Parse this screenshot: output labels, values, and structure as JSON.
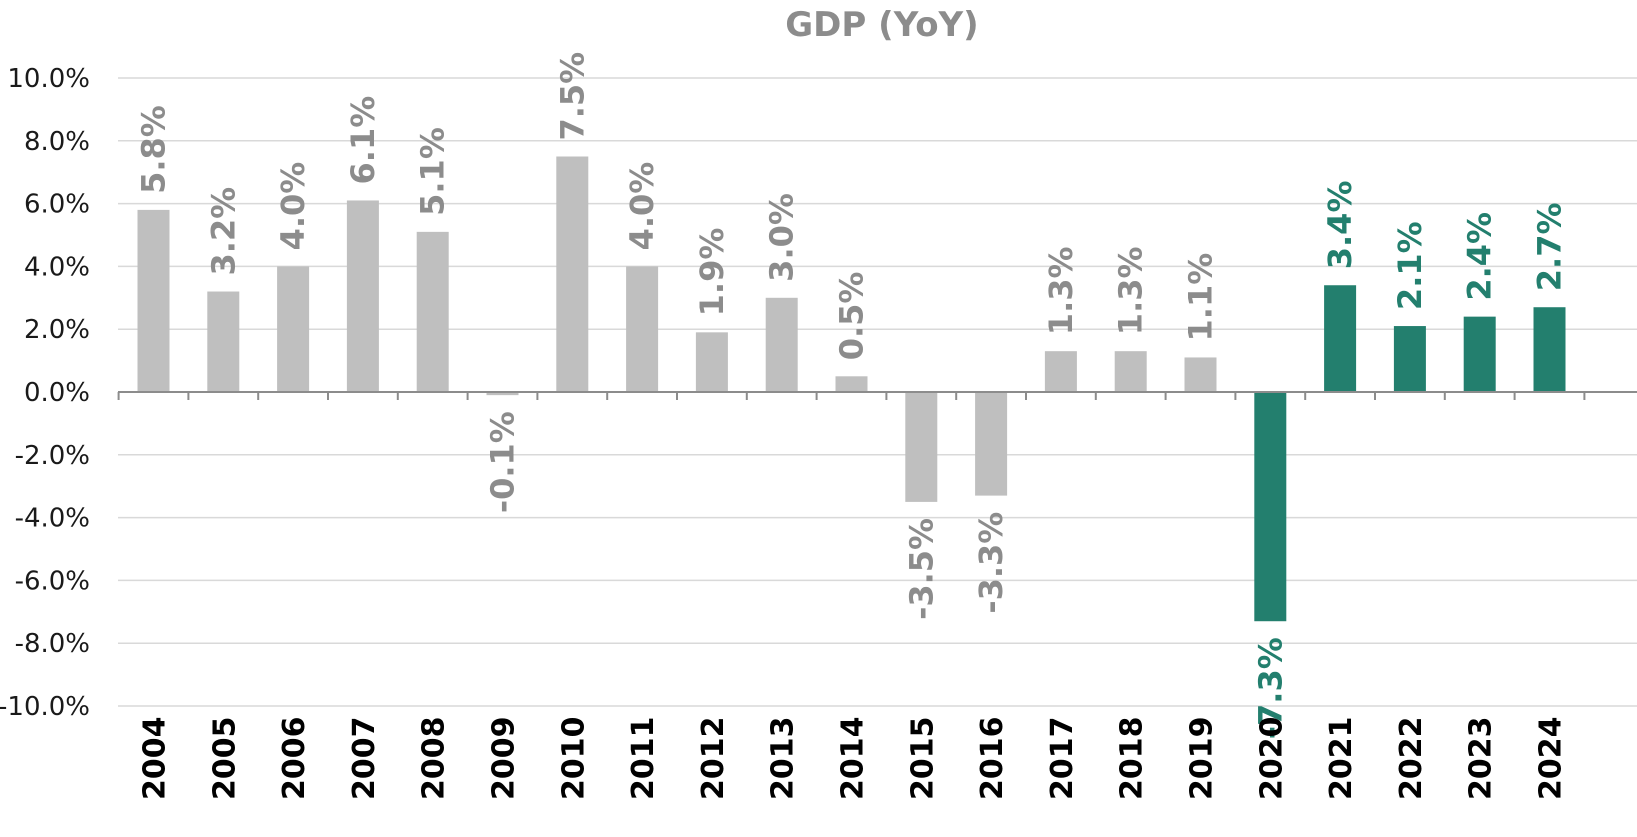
{
  "chart_data": {
    "type": "bar",
    "title": "GDP (YoY)",
    "xlabel": "",
    "ylabel": "",
    "ylim": [
      -10,
      10
    ],
    "y_tick_step": 2,
    "y_tick_format": "percent_1dp",
    "grid": true,
    "legend": "none",
    "categories": [
      "2004",
      "2005",
      "2006",
      "2007",
      "2008",
      "2009",
      "2010",
      "2011",
      "2012",
      "2013",
      "2014",
      "2015",
      "2016",
      "2017",
      "2018",
      "2019",
      "2020",
      "2021",
      "2022",
      "2023",
      "2024"
    ],
    "values": [
      5.8,
      3.2,
      4.0,
      6.1,
      5.1,
      -0.1,
      7.5,
      4.0,
      1.9,
      3.0,
      0.5,
      -3.5,
      -3.3,
      1.3,
      1.3,
      1.1,
      -7.3,
      3.4,
      2.1,
      2.4,
      2.7
    ],
    "data_labels": [
      "5.8%",
      "3.2%",
      "4.0%",
      "6.1%",
      "5.1%",
      "-0.1%",
      "7.5%",
      "4.0%",
      "1.9%",
      "3.0%",
      "0.5%",
      "-3.5%",
      "-3.3%",
      "1.3%",
      "1.3%",
      "1.1%",
      "-7.3%",
      "3.4%",
      "2.1%",
      "2.4%",
      "2.7%"
    ],
    "highlight_from_category": "2020",
    "colors": {
      "bar_default": "#bfbfbf",
      "bar_highlight": "#237f6e",
      "label_default": "#8c8c8c",
      "label_highlight": "#237f6e",
      "title": "#8c8c8c"
    }
  }
}
